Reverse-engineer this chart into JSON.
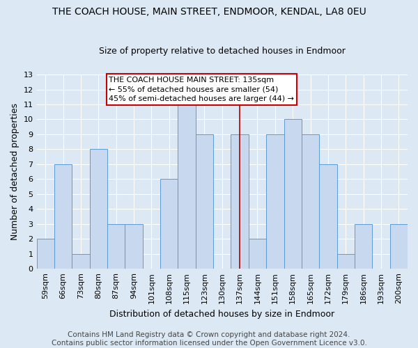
{
  "title": "THE COACH HOUSE, MAIN STREET, ENDMOOR, KENDAL, LA8 0EU",
  "subtitle": "Size of property relative to detached houses in Endmoor",
  "xlabel": "Distribution of detached houses by size in Endmoor",
  "ylabel": "Number of detached properties",
  "categories": [
    "59sqm",
    "66sqm",
    "73sqm",
    "80sqm",
    "87sqm",
    "94sqm",
    "101sqm",
    "108sqm",
    "115sqm",
    "123sqm",
    "130sqm",
    "137sqm",
    "144sqm",
    "151sqm",
    "158sqm",
    "165sqm",
    "172sqm",
    "179sqm",
    "186sqm",
    "193sqm",
    "200sqm"
  ],
  "values": [
    2,
    7,
    1,
    8,
    3,
    3,
    0,
    6,
    11,
    9,
    0,
    9,
    2,
    9,
    10,
    9,
    7,
    1,
    3,
    0,
    3
  ],
  "highlight_index": 11,
  "bar_color": "#c8d9ef",
  "bar_edge_color": "#5b9bd5",
  "highlight_line_color": "#aa0000",
  "annotation_text": "THE COACH HOUSE MAIN STREET: 135sqm\n← 55% of detached houses are smaller (54)\n45% of semi-detached houses are larger (44) →",
  "annotation_box_color": "#ffffff",
  "annotation_box_edge": "#cc0000",
  "footer": "Contains HM Land Registry data © Crown copyright and database right 2024.\nContains public sector information licensed under the Open Government Licence v3.0.",
  "ylim": [
    0,
    13
  ],
  "yticks": [
    0,
    1,
    2,
    3,
    4,
    5,
    6,
    7,
    8,
    9,
    10,
    11,
    12,
    13
  ],
  "background_color": "#dce9f5",
  "grid_color": "#ffffff",
  "title_fontsize": 10,
  "subtitle_fontsize": 9,
  "axis_label_fontsize": 9,
  "tick_fontsize": 8,
  "annotation_fontsize": 8,
  "footer_fontsize": 7.5
}
